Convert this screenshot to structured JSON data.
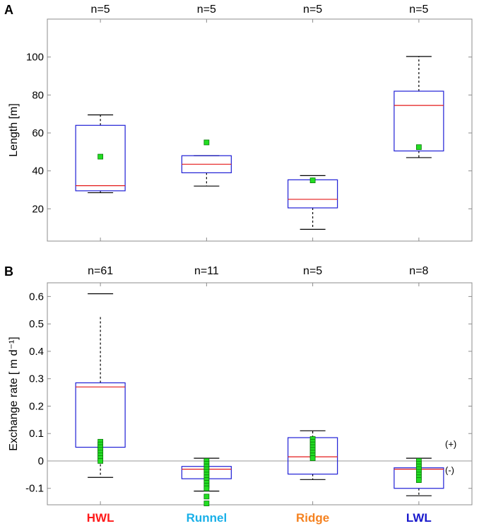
{
  "chart_data": [
    {
      "panel_label": "A",
      "type": "box",
      "ylabel": "Length [m]",
      "xlabel": "",
      "ylim": [
        3,
        120
      ],
      "yticks": [
        20,
        40,
        60,
        80,
        100
      ],
      "categories": [
        "HWL",
        "Runnel",
        "Ridge",
        "LWL"
      ],
      "counts": [
        "n=5",
        "n=5",
        "n=5",
        "n=5"
      ],
      "boxes": [
        {
          "whisker_low": 28.5,
          "q1": 29.5,
          "median": 32.2,
          "q3": 64.0,
          "whisker_high": 69.5,
          "upper_dotted_to": null,
          "lower_dotted_to": null
        },
        {
          "whisker_low": 32.0,
          "q1": 39.0,
          "median": 43.5,
          "q3": 48.0,
          "whisker_high": 48.0,
          "upper_dotted_to": null,
          "lower_dotted_to": 32.0
        },
        {
          "whisker_low": 9.2,
          "q1": 20.5,
          "median": 25.0,
          "q3": 35.3,
          "whisker_high": 37.5,
          "upper_dotted_to": null,
          "lower_dotted_to": 9.2
        },
        {
          "whisker_low": 47.0,
          "q1": 50.5,
          "median": 74.5,
          "q3": 82.0,
          "whisker_high": 100.3,
          "upper_dotted_to": 100.3,
          "lower_dotted_to": null
        }
      ],
      "points": [
        [
          47.5
        ],
        [
          55.0
        ],
        [
          35.0
        ],
        [
          52.5
        ]
      ],
      "zero_line": false,
      "annotations": []
    },
    {
      "panel_label": "B",
      "type": "box",
      "ylabel": "Exchange rate [ m d⁻¹]",
      "xlabel": "",
      "ylim": [
        -0.16,
        0.65
      ],
      "yticks": [
        -0.1,
        0,
        0.1,
        0.2,
        0.3,
        0.4,
        0.5,
        0.6
      ],
      "ytick_labels": [
        "-0.1",
        "0",
        "0.1",
        "0.2",
        "0.3",
        "0.4",
        "0.5",
        "0.6"
      ],
      "categories": [
        "HWL",
        "Runnel",
        "Ridge",
        "LWL"
      ],
      "category_colors": [
        "#ff1a1a",
        "#1ab0e8",
        "#f58220",
        "#1a1acc"
      ],
      "counts": [
        "n=61",
        "n=11",
        "n=5",
        "n=8"
      ],
      "boxes": [
        {
          "whisker_low": -0.06,
          "q1": 0.05,
          "median": 0.27,
          "q3": 0.285,
          "whisker_high": 0.61,
          "upper_dotted_to": 0.53,
          "lower_dotted_to": null
        },
        {
          "whisker_low": -0.11,
          "q1": -0.065,
          "median": -0.03,
          "q3": -0.02,
          "whisker_high": 0.01,
          "upper_dotted_to": null,
          "lower_dotted_to": null
        },
        {
          "whisker_low": -0.068,
          "q1": -0.048,
          "median": 0.015,
          "q3": 0.085,
          "whisker_high": 0.11,
          "upper_dotted_to": null,
          "lower_dotted_to": null
        },
        {
          "whisker_low": -0.127,
          "q1": -0.1,
          "median": -0.03,
          "q3": -0.025,
          "whisker_high": 0.01,
          "upper_dotted_to": null,
          "lower_dotted_to": null
        }
      ],
      "points": [
        [
          0.07,
          0.06,
          0.05,
          0.04,
          0.03,
          0.02,
          0.01,
          0.0
        ],
        [
          0.0,
          -0.01,
          -0.02,
          -0.03,
          -0.04,
          -0.05,
          -0.06,
          -0.07,
          -0.08,
          -0.09,
          -0.1,
          -0.13,
          -0.155
        ],
        [
          0.08,
          0.07,
          0.06,
          0.05,
          0.04,
          0.03,
          0.02,
          0.01
        ],
        [
          0.0,
          -0.01,
          -0.02,
          -0.03,
          -0.04,
          -0.05,
          -0.06,
          -0.07
        ]
      ],
      "zero_line": true,
      "annotations": [
        "(+)",
        "(-)"
      ]
    }
  ]
}
